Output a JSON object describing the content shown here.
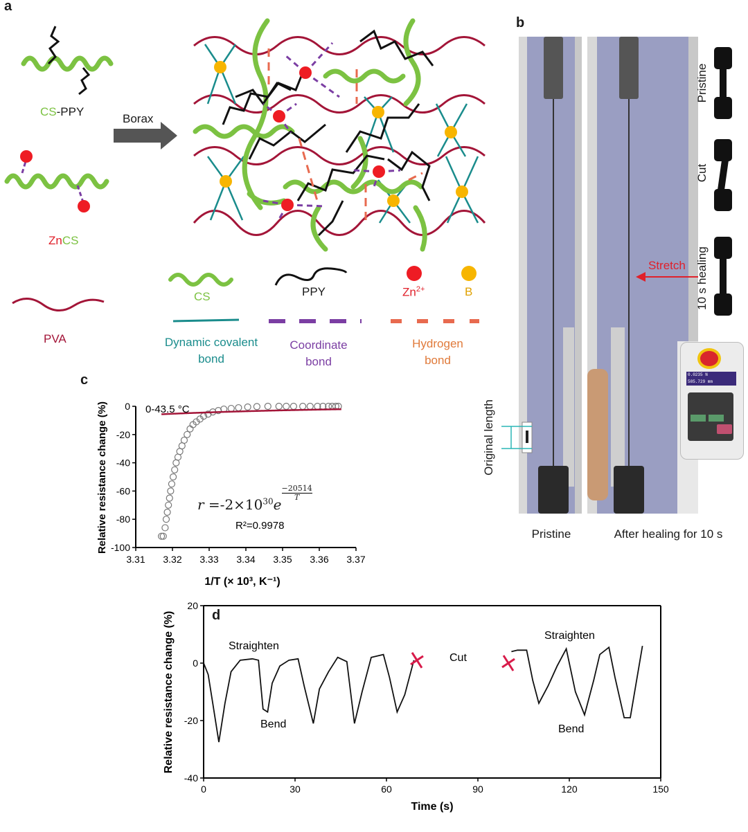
{
  "panels": {
    "a": "a",
    "b": "b",
    "c": "c",
    "d": "d"
  },
  "panel_a": {
    "components": [
      {
        "prefix": "CS",
        "suffix": "-PPY"
      },
      {
        "prefix": "Zn",
        "suffix": "CS"
      },
      {
        "label": "PVA"
      }
    ],
    "arrow_label": "Borax",
    "legend": {
      "cs": "CS",
      "ppy": "PPY",
      "zn_base": "Zn",
      "zn_sup": "2+",
      "b": "B",
      "dynamic_covalent": [
        "Dynamic covalent",
        "bond"
      ],
      "coordinate": [
        "Coordinate",
        "bond"
      ],
      "hydrogen": [
        "Hydrogen",
        "bond"
      ]
    },
    "colors": {
      "cs": "#7cc242",
      "ppy": "#111111",
      "pva": "#a31538",
      "zn": "#ee1c24",
      "b": "#f7b500",
      "covalent": "#1a8c8c",
      "coordinate": "#7b3ea3",
      "hydrogen": "#e86a4f"
    }
  },
  "panel_b": {
    "labels": {
      "pristine_side": "Pristine",
      "cut_side": "Cut",
      "healing_side": "10 s healing",
      "stretch": "Stretch",
      "original_length": "Original length",
      "caption_left": "Pristine",
      "caption_right": "After healing for 10 s"
    },
    "controller_display": [
      "0.0235 N",
      "585.729 mm"
    ]
  },
  "chart_data": [
    {
      "type": "scatter",
      "panel": "c",
      "annotation_range": "0-43.5 °C",
      "equation": {
        "r": "r",
        "eq": "=-2×",
        "base": "10",
        "exp": "30",
        "e": "e",
        "num": "−20514",
        "den": "T"
      },
      "r2": "R²=0.9978",
      "xlabel": "1/T (× 10³, K⁻¹)",
      "ylabel": "Relative resistance change (%)",
      "xlim": [
        3.31,
        3.37
      ],
      "ylim": [
        -100,
        0
      ],
      "xticks": [
        "3.31",
        "3.32",
        "3.33",
        "3.34",
        "3.35",
        "3.36",
        "3.37"
      ],
      "yticks": [
        "0",
        "-20",
        "-40",
        "-60",
        "-80",
        "-100"
      ],
      "scatter": {
        "x": [
          3.317,
          3.3175,
          3.318,
          3.3183,
          3.3186,
          3.3189,
          3.3192,
          3.3195,
          3.3198,
          3.3202,
          3.3206,
          3.321,
          3.3215,
          3.322,
          3.3226,
          3.3232,
          3.324,
          3.3248,
          3.3256,
          3.3265,
          3.3275,
          3.3285,
          3.3297,
          3.331,
          3.3325,
          3.334,
          3.336,
          3.338,
          3.3405,
          3.343,
          3.346,
          3.349,
          3.351,
          3.353,
          3.3555,
          3.3575,
          3.3595,
          3.361,
          3.3625,
          3.3635,
          3.3645,
          3.3652
        ],
        "y": [
          -92,
          -92,
          -86,
          -80,
          -75,
          -70,
          -65,
          -60,
          -55,
          -50,
          -45,
          -40,
          -36,
          -32,
          -28,
          -24,
          -20,
          -16,
          -13,
          -11,
          -9,
          -7,
          -5.5,
          -4,
          -3,
          -2,
          -1.5,
          -1,
          -0.5,
          -0.2,
          0,
          0,
          0,
          0,
          0,
          0,
          0,
          0,
          0,
          0,
          0,
          0
        ]
      },
      "fit": {
        "a": -2e+30,
        "b": -20514
      }
    },
    {
      "type": "line",
      "panel": "d",
      "xlabel": "Time (s)",
      "ylabel": "Relative resistance change (%)",
      "xlim": [
        0,
        150
      ],
      "ylim": [
        -40,
        20
      ],
      "xticks": [
        "0",
        "30",
        "60",
        "90",
        "120",
        "150"
      ],
      "yticks": [
        "20",
        "0",
        "-20",
        "-40"
      ],
      "segments": [
        {
          "x": [
            0,
            1.5,
            3,
            5,
            7,
            9,
            12,
            16,
            18,
            19.5,
            21,
            22.5,
            25,
            28,
            31,
            33,
            36,
            38,
            41,
            44,
            47,
            49.5,
            52,
            55,
            59,
            61,
            63.5,
            66,
            69
          ],
          "y": [
            0,
            -4,
            -14,
            -27.5,
            -14,
            -3,
            1,
            1.5,
            1,
            -16,
            -17,
            -7,
            -1,
            1,
            1.5,
            -8,
            -21,
            -9,
            -3,
            2,
            0.5,
            -21,
            -10,
            2,
            3,
            -5,
            -17,
            -11,
            1
          ]
        },
        {
          "x": [
            101,
            103,
            106,
            108,
            110,
            113,
            116,
            119,
            122,
            125,
            128,
            130,
            133,
            135,
            138,
            140,
            144
          ],
          "y": [
            4,
            4.5,
            4.5,
            -6,
            -14,
            -8,
            -1,
            5,
            -10,
            -18,
            -6,
            3,
            5.5,
            -5,
            -19,
            -19,
            6
          ]
        }
      ],
      "annotations": {
        "straighten_left": "Straighten",
        "bend_left": "Bend",
        "cut": "Cut",
        "straighten_right": "Straighten",
        "bend_right": "Bend"
      },
      "cut_marks": [
        {
          "x": 70,
          "y": 1
        },
        {
          "x": 100,
          "y": 0
        }
      ]
    }
  ]
}
